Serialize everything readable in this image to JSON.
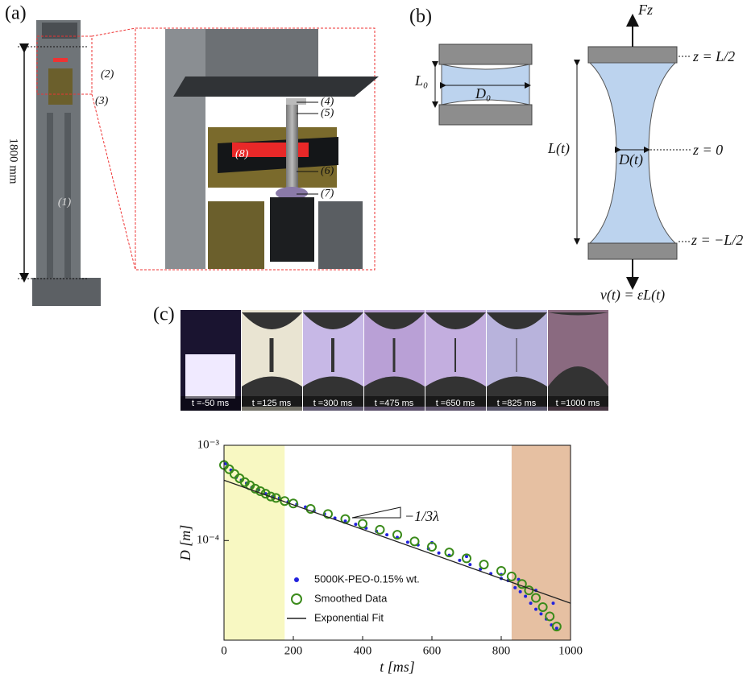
{
  "panels": {
    "a": {
      "label": "(a)",
      "height_label": "1800 mm",
      "parts": [
        "(1)",
        "(2)",
        "(3)",
        "(4)",
        "(5)",
        "(6)",
        "(7)",
        "(8)"
      ]
    },
    "b": {
      "label": "(b)",
      "L0": "L₀",
      "D0": "D₀",
      "force": "Fz",
      "z_top": "z = L/2",
      "z_mid": "z = 0",
      "z_bottom": "z = −L/2",
      "length": "L(t)",
      "diameter": "D(t)",
      "velocity": "v(t) = ε̇L(t)"
    },
    "c": {
      "label": "(c)",
      "frames": [
        "t =-50 ms",
        "t =125 ms",
        "t =300 ms",
        "t =475 ms",
        "t =650 ms",
        "t =825 ms",
        "t =1000 ms"
      ]
    }
  },
  "chart_data": {
    "type": "scatter",
    "xlabel": "t [ms]",
    "ylabel": "D [m]",
    "annotation": "−1/3λ",
    "xlim": [
      0,
      1000
    ],
    "xticks": [
      0,
      200,
      400,
      600,
      800,
      1000
    ],
    "ylim": [
      9e-06,
      0.001
    ],
    "log_y": true,
    "yticks": [
      {
        "value": 0.0001,
        "label": "10⁻⁴"
      },
      {
        "value": 0.001,
        "label": "10⁻³"
      }
    ],
    "shaded_regions": [
      {
        "xlim": [
          0,
          175
        ],
        "color": "#f8f8c2"
      },
      {
        "xlim": [
          830,
          1000
        ],
        "color": "#e6c0a2"
      }
    ],
    "legend": "lower left",
    "series": [
      {
        "name": "5000K-PEO-0.15% wt.",
        "color": "#2222dd",
        "marker": "dot",
        "x": [
          5,
          20,
          35,
          50,
          65,
          80,
          100,
          120,
          140,
          160,
          185,
          210,
          235,
          260,
          290,
          320,
          350,
          380,
          410,
          440,
          470,
          500,
          530,
          560,
          590,
          620,
          650,
          680,
          710,
          740,
          770,
          800,
          820,
          840,
          855,
          870,
          885,
          900,
          915,
          930,
          945,
          960,
          600,
          700,
          800,
          850,
          900,
          950
        ],
        "values": [
          0.00064,
          0.00055,
          0.00046,
          0.00043,
          0.0004,
          0.00036,
          0.00034,
          0.00031,
          0.00029,
          0.00028,
          0.000255,
          0.00024,
          0.000225,
          0.000205,
          0.00019,
          0.000172,
          0.00016,
          0.000148,
          0.000135,
          0.000125,
          0.000115,
          0.000108,
          9.6e-05,
          9e-05,
          8.2e-05,
          7.4e-05,
          7e-05,
          6.2e-05,
          5.6e-05,
          5e-05,
          4.5e-05,
          4e-05,
          3.8e-05,
          3.2e-05,
          2.9e-05,
          2.6e-05,
          2.2e-05,
          1.9e-05,
          1.7e-05,
          1.5e-05,
          1.3e-05,
          1.2e-05,
          9.5e-05,
          6.8e-05,
          4.4e-05,
          3.9e-05,
          3e-05,
          2.2e-05
        ]
      },
      {
        "name": "Smoothed Data",
        "color": "#3a8a1a",
        "marker": "ring",
        "x": [
          0,
          15,
          30,
          45,
          60,
          75,
          90,
          105,
          120,
          135,
          150,
          175,
          200,
          250,
          300,
          350,
          400,
          450,
          500,
          550,
          600,
          650,
          700,
          750,
          800,
          830,
          860,
          880,
          900,
          920,
          940,
          960
        ],
        "values": [
          0.00062,
          0.00056,
          0.0005,
          0.00045,
          0.00041,
          0.00038,
          0.00035,
          0.00033,
          0.00031,
          0.00029,
          0.00028,
          0.00026,
          0.000245,
          0.000215,
          0.00019,
          0.000168,
          0.00015,
          0.00013,
          0.000115,
          9.8e-05,
          8.6e-05,
          7.5e-05,
          6.5e-05,
          5.6e-05,
          4.8e-05,
          4.2e-05,
          3.5e-05,
          3e-05,
          2.5e-05,
          2e-05,
          1.6e-05,
          1.25e-05
        ]
      },
      {
        "name": "Exponential Fit",
        "color": "#222222",
        "marker": "line",
        "x": [
          0,
          1000
        ],
        "values": [
          0.00043,
          2.2e-05
        ]
      }
    ]
  }
}
